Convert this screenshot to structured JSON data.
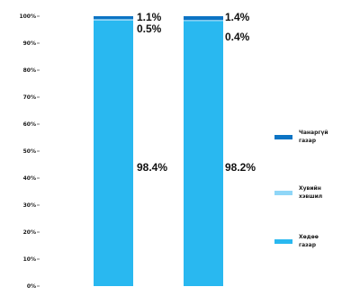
{
  "chart_data": {
    "type": "bar",
    "stacked": true,
    "categories": [
      "",
      ""
    ],
    "ylim": [
      0,
      100
    ],
    "yticks": [
      "0%",
      "10%",
      "20%",
      "30%",
      "40%",
      "50%",
      "60%",
      "70%",
      "80%",
      "90%",
      "100%"
    ],
    "series": [
      {
        "name": "Хөдөө газар",
        "color": "#29b8f0",
        "values": [
          98.4,
          98.2
        ]
      },
      {
        "name": "Хувийн хэвшил",
        "color": "#8fd6f7",
        "values": [
          0.5,
          0.4
        ]
      },
      {
        "name": "Чанаргүй газар",
        "color": "#0c74c4",
        "values": [
          1.1,
          1.4
        ]
      }
    ],
    "labels": [
      [
        "98.4%",
        "0.5%",
        "1.1%"
      ],
      [
        "98.2%",
        "0.4%",
        "1.4%"
      ]
    ],
    "legend_position": "right",
    "grid": false
  }
}
